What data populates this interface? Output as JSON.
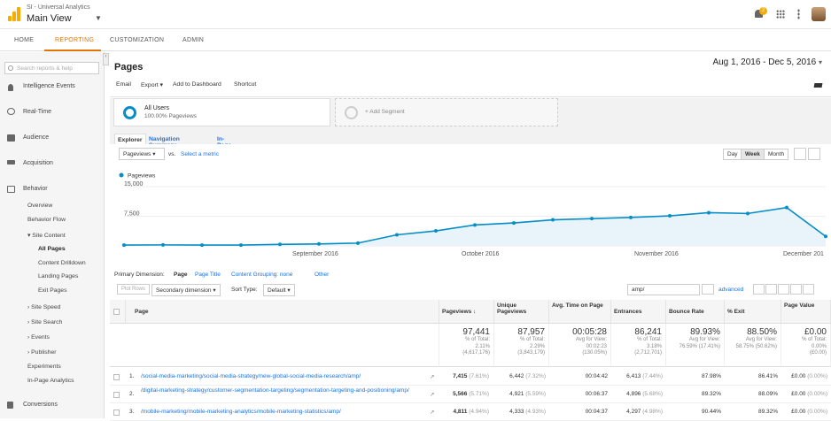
{
  "account": {
    "property": "SI - Universal Analytics",
    "view": "Main View",
    "caret": "▼"
  },
  "topbar": {
    "bell_badge": "2"
  },
  "nav": {
    "tabs": [
      "HOME",
      "REPORTING",
      "CUSTOMIZATION",
      "ADMIN"
    ],
    "active": "REPORTING"
  },
  "sidebar": {
    "search_placeholder": "Search reports & help",
    "items": [
      {
        "label": "Intelligence Events",
        "icon": "lightbulb-icon"
      },
      {
        "label": "Real-Time",
        "icon": "clock-icon"
      },
      {
        "label": "Audience",
        "icon": "people-icon"
      },
      {
        "label": "Acquisition",
        "icon": "acquisition-arrows-icon"
      },
      {
        "label": "Behavior",
        "icon": "behavior-icon"
      }
    ],
    "behavior_sub": [
      "Overview",
      "Behavior Flow",
      "▾ Site Content",
      "All Pages",
      "Content Drilldown",
      "Landing Pages",
      "Exit Pages",
      "› Site Speed",
      "› Site Search",
      "› Events",
      "› Publisher",
      "Experiments",
      "In-Page Analytics"
    ],
    "conversions": "Conversions"
  },
  "page": {
    "title": "Pages",
    "date_range": "Aug 1, 2016 - Dec 5, 2016",
    "date_caret": "▾"
  },
  "toolbar": {
    "email": "Email",
    "export": "Export",
    "add_dashboard": "Add to Dashboard",
    "shortcut": "Shortcut"
  },
  "segments": {
    "seg1_title": "All Users",
    "seg1_sub": "100.00% Pageviews",
    "add_segment": "+ Add Segment"
  },
  "subtabs": [
    "Explorer",
    "Navigation Summary",
    "In-Page"
  ],
  "chart_controls": {
    "metric": "Pageviews",
    "vs": "vs.",
    "select_metric": "Select a metric",
    "day": "Day",
    "week": "Week",
    "month": "Month"
  },
  "chart_data": {
    "type": "line",
    "series": [
      {
        "name": "Pageviews",
        "values": [
          200,
          250,
          200,
          200,
          380,
          500,
          700,
          2800,
          3800,
          5300,
          5800,
          6600,
          6900,
          7200,
          7600,
          8400,
          8200,
          9700,
          2400
        ]
      }
    ],
    "y_ticks": [
      "15,000",
      "7,500"
    ],
    "x_labels": [
      "September 2016",
      "October 2016",
      "November 2016",
      "December 201"
    ],
    "ylim": [
      0,
      15000
    ],
    "color": "#058dc7"
  },
  "dimension": {
    "label": "Primary Dimension:",
    "page": "Page",
    "page_title": "Page Title",
    "content_grouping": "Content Grouping: none",
    "other": "Other"
  },
  "table_tools": {
    "plot_rows": "Plot Rows",
    "secondary": "Secondary dimension",
    "sort_label": "Sort Type:",
    "sort_value": "Default",
    "filter_value": "amp/",
    "advanced": "advanced"
  },
  "columns": [
    "Page",
    "Pageviews",
    "Unique Pageviews",
    "Avg. Time on Page",
    "Entrances",
    "Bounce Rate",
    "% Exit",
    "Page Value"
  ],
  "totals": [
    {
      "big": "97,441",
      "l1": "% of Total:",
      "l2": "2.11%",
      "l3": "(4,617,176)"
    },
    {
      "big": "87,957",
      "l1": "% of Total:",
      "l2": "2.29%",
      "l3": "(3,843,179)"
    },
    {
      "big": "00:05:28",
      "l1": "Avg for View:",
      "l2": "00:02:23",
      "l3": "(130.05%)"
    },
    {
      "big": "86,241",
      "l1": "% of Total:",
      "l2": "3.18%",
      "l3": "(2,712,701)"
    },
    {
      "big": "89.93%",
      "l1": "Avg for View:",
      "l2": "76.59% (17.41%)",
      "l3": ""
    },
    {
      "big": "88.50%",
      "l1": "Avg for View:",
      "l2": "58.75% (50.62%)",
      "l3": ""
    },
    {
      "big": "£0.00",
      "l1": "% of Total:",
      "l2": "0.00%",
      "l3": "(£0.00)"
    }
  ],
  "rows": [
    {
      "n": "1.",
      "page": "/social-media-marketing/social-media-strategy/new-global-social-media-research/amp/",
      "pv": "7,415",
      "pv_pct": "(7.61%)",
      "upv": "6,442",
      "upv_pct": "(7.32%)",
      "time": "00:04:42",
      "ent": "6,413",
      "ent_pct": "(7.44%)",
      "bounce": "87.98%",
      "exit": "86.41%",
      "value": "£0.00",
      "value_pct": "(0.00%)"
    },
    {
      "n": "2.",
      "page": "/digital-marketing-strategy/customer-segmentation-targeting/segmentation-targeting-and-positioning/amp/",
      "pv": "5,566",
      "pv_pct": "(5.71%)",
      "upv": "4,921",
      "upv_pct": "(5.59%)",
      "time": "00:06:37",
      "ent": "4,896",
      "ent_pct": "(5.68%)",
      "bounce": "89.32%",
      "exit": "88.09%",
      "value": "£0.00",
      "value_pct": "(0.00%)"
    },
    {
      "n": "3.",
      "page": "/mobile-marketing/mobile-marketing-analytics/mobile-marketing-statistics/amp/",
      "pv": "4,811",
      "pv_pct": "(4.94%)",
      "upv": "4,333",
      "upv_pct": "(4.93%)",
      "time": "00:04:37",
      "ent": "4,297",
      "ent_pct": "(4.98%)",
      "bounce": "90.44%",
      "exit": "89.32%",
      "value": "£0.00",
      "value_pct": "(0.00%)"
    }
  ]
}
